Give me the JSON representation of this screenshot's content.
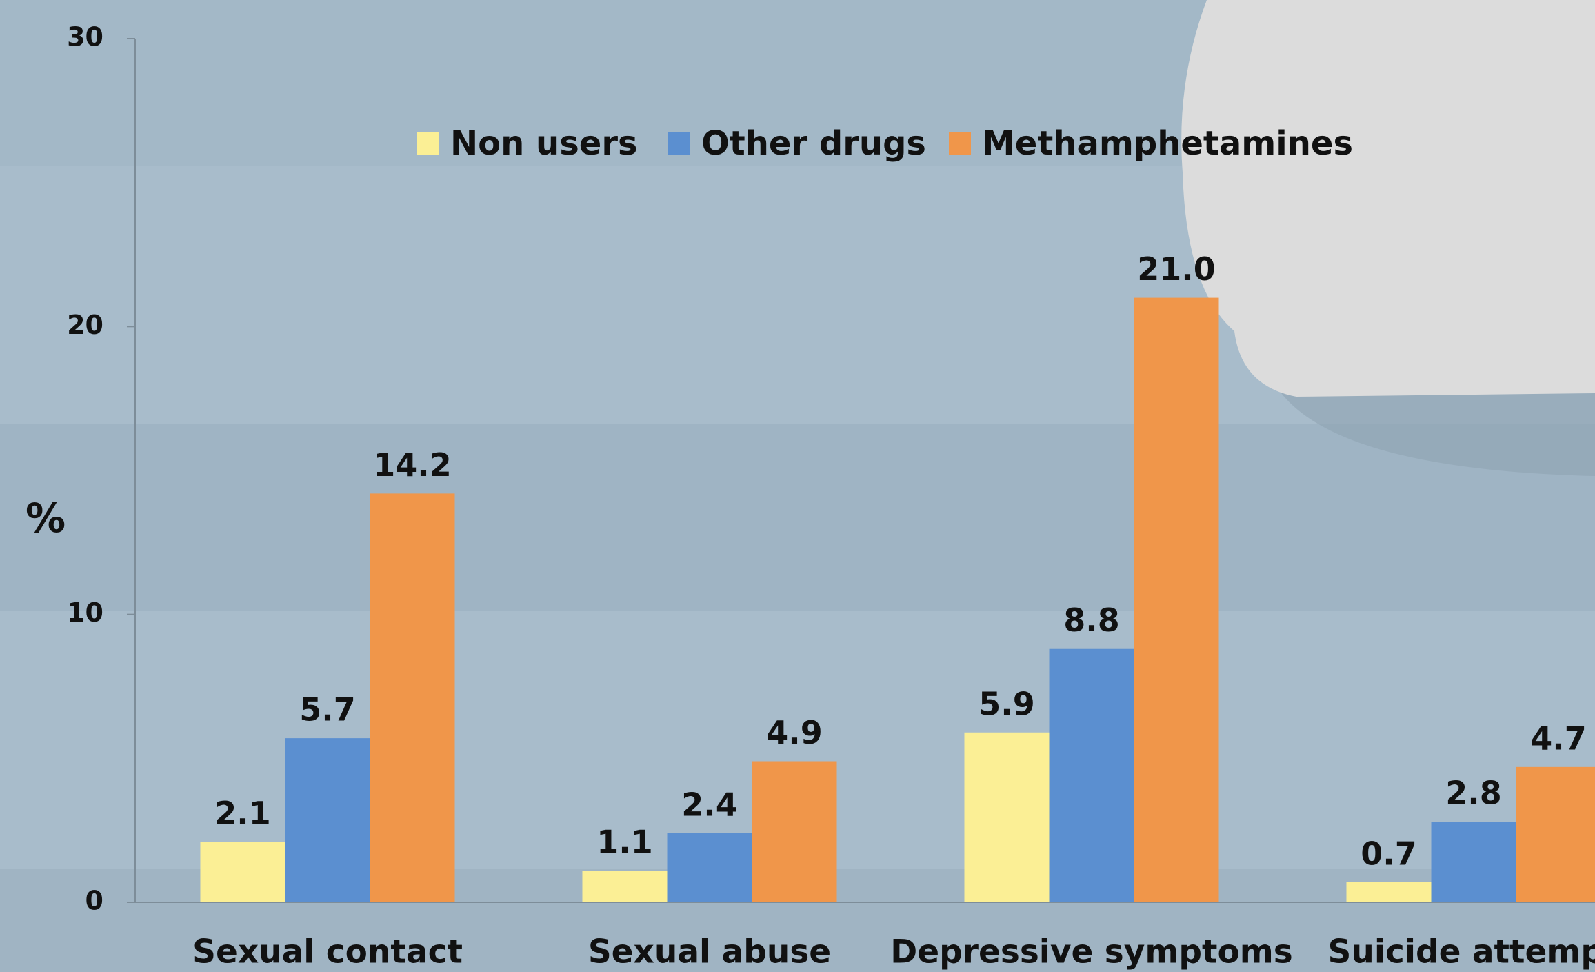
{
  "chart_data": {
    "type": "bar",
    "y_label": "%",
    "categories": [
      "Sexual contact",
      "Sexual abuse",
      "Depressive symptoms",
      "Suicide attempt"
    ],
    "series": [
      {
        "name": "Non users",
        "color": "#fbef95",
        "values": [
          2.1,
          1.1,
          5.9,
          0.7
        ],
        "value_labels": [
          "2.1",
          "1.1",
          "5.9",
          "0.7"
        ]
      },
      {
        "name": "Other drugs",
        "color": "#5b8fd0",
        "values": [
          5.7,
          2.4,
          8.8,
          2.8
        ],
        "value_labels": [
          "5.7",
          "2.4",
          "8.8",
          "2.8"
        ]
      },
      {
        "name": "Methamphetamines",
        "color": "#f0964a",
        "values": [
          14.2,
          4.9,
          21.0,
          4.7
        ],
        "value_labels": [
          "14.2",
          "4.9",
          "21.0",
          "4.7"
        ]
      }
    ],
    "ylim": [
      0,
      30
    ],
    "yticks": [
      0,
      10,
      20,
      30
    ],
    "legend": "top"
  }
}
